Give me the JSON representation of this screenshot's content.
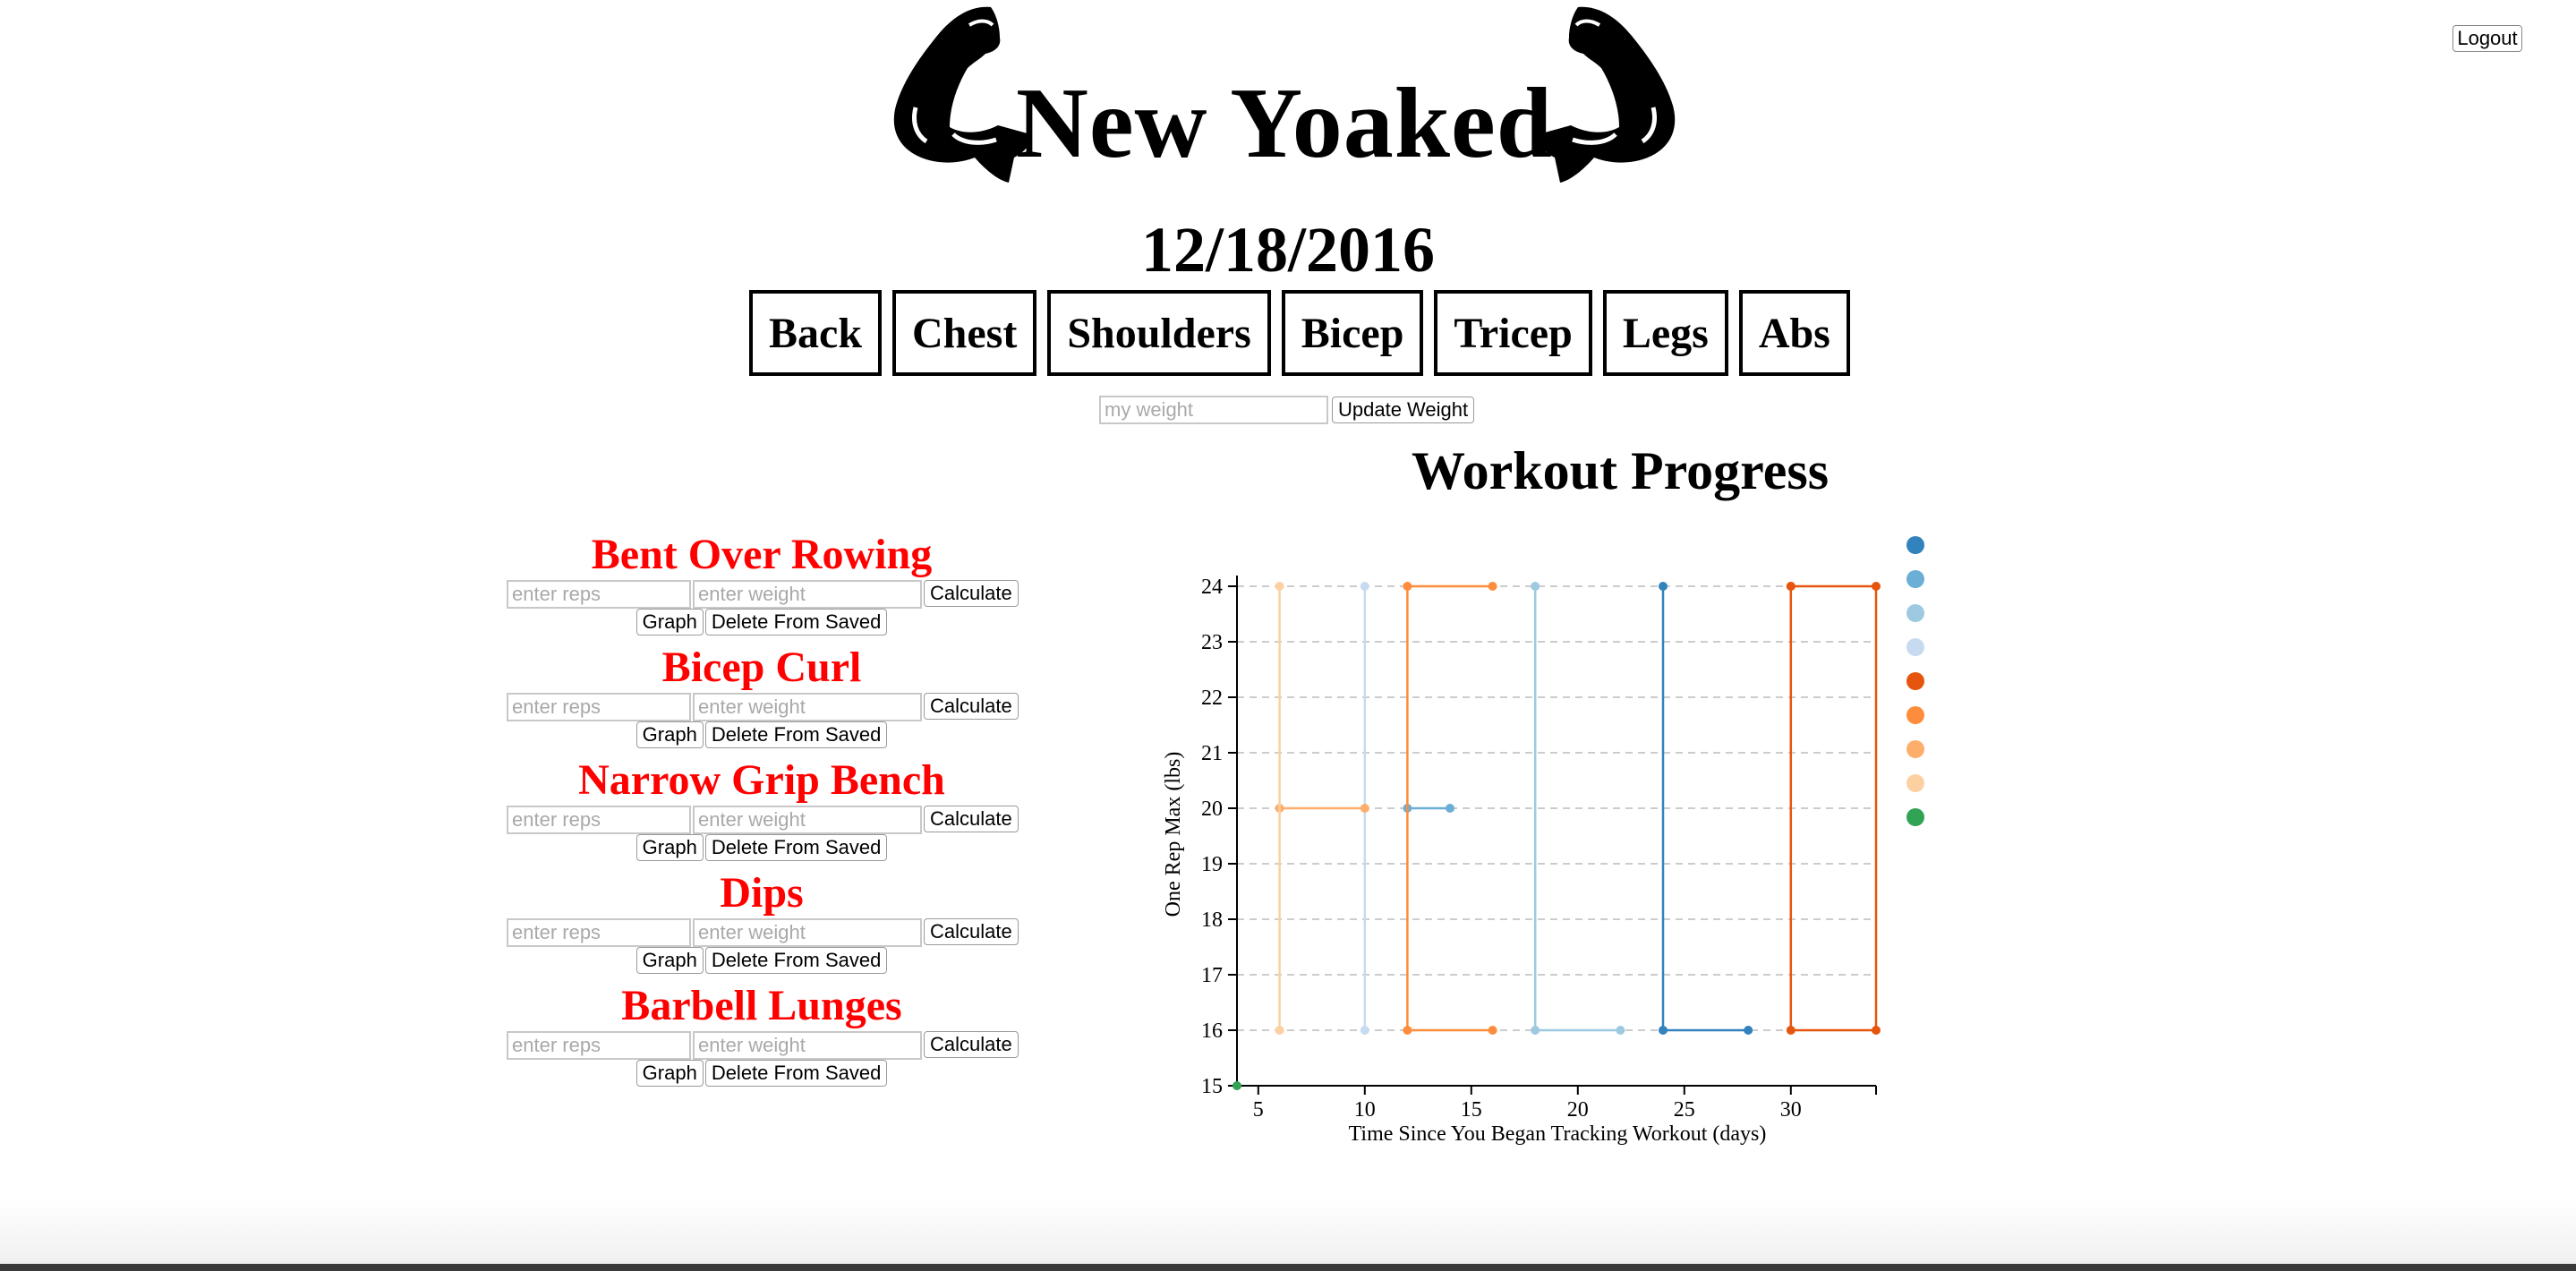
{
  "header": {
    "logout_label": "Logout",
    "brand": "New Yoaked",
    "date": "12/18/2016"
  },
  "muscle_tabs": [
    "Back",
    "Chest",
    "Shoulders",
    "Bicep",
    "Tricep",
    "Legs",
    "Abs"
  ],
  "weight_form": {
    "placeholder": "my weight",
    "button_label": "Update Weight"
  },
  "exercise_form": {
    "reps_placeholder": "enter reps",
    "weight_placeholder": "enter weight",
    "calculate_label": "Calculate",
    "graph_label": "Graph",
    "delete_label": "Delete From Saved"
  },
  "exercises": [
    "Bent Over Rowing",
    "Bicep Curl",
    "Narrow Grip Bench",
    "Dips",
    "Barbell Lunges"
  ],
  "colors": {
    "exercise_title": "#ff0000",
    "text": "#000000"
  },
  "chart_data": {
    "type": "line",
    "title": "Workout Progress",
    "xlabel": "Time Since You Began Tracking Workout (days)",
    "ylabel": "One Rep Max (lbs)",
    "xlim": [
      4,
      34
    ],
    "ylim": [
      15,
      24
    ],
    "x_ticks": [
      5,
      10,
      15,
      20,
      25,
      30
    ],
    "y_ticks": [
      15,
      16,
      17,
      18,
      19,
      20,
      21,
      22,
      23,
      24
    ],
    "grid": "horizontal-dashed",
    "legend_position": "right",
    "series": [
      {
        "color": "#3182bd",
        "points": [
          [
            24,
            24
          ],
          [
            24,
            16
          ],
          [
            28,
            16
          ]
        ]
      },
      {
        "color": "#6baed6",
        "points": [
          [
            12,
            20
          ],
          [
            14,
            20
          ]
        ]
      },
      {
        "color": "#9ecae1",
        "points": [
          [
            18,
            24
          ],
          [
            18,
            16
          ],
          [
            22,
            16
          ]
        ]
      },
      {
        "color": "#c6dbef",
        "points": [
          [
            10,
            24
          ],
          [
            10,
            16
          ]
        ]
      },
      {
        "color": "#e6550d",
        "points": [
          [
            30,
            24
          ],
          [
            34,
            24
          ],
          [
            34,
            16
          ],
          [
            30,
            16
          ],
          [
            30,
            24
          ]
        ]
      },
      {
        "color": "#fd8d3c",
        "points": [
          [
            16,
            24
          ],
          [
            12,
            24
          ],
          [
            12,
            16
          ],
          [
            16,
            16
          ]
        ]
      },
      {
        "color": "#fdae6b",
        "points": [
          [
            6,
            20
          ],
          [
            10,
            20
          ]
        ]
      },
      {
        "color": "#fdd0a2",
        "points": [
          [
            6,
            24
          ],
          [
            6,
            16
          ]
        ]
      },
      {
        "color": "#31a354",
        "points": [
          [
            4,
            15
          ]
        ]
      }
    ]
  }
}
